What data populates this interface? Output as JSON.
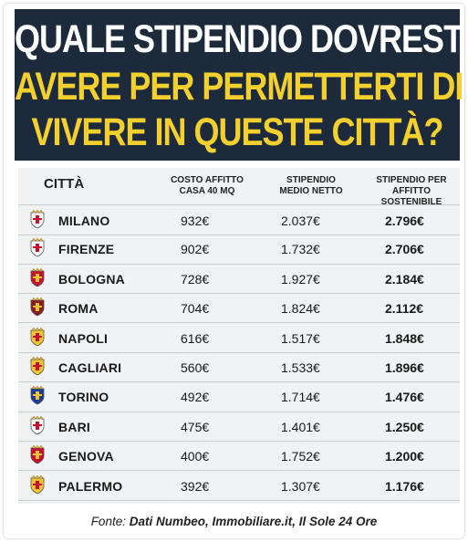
{
  "header": {
    "line1": "QUALE STIPENDIO DOVRESTI",
    "line2": "AVERE PER PERMETTERTI DI",
    "line3": "VIVERE IN QUESTE CITTÀ?"
  },
  "colors": {
    "navy": "#1c2a3b",
    "yellow": "#f4d02f"
  },
  "table": {
    "columns": {
      "city": "CITTÀ",
      "rent_l1": "COSTO AFFITTO",
      "rent_l2": "CASA 40 MQ",
      "net_l1": "STIPENDIO",
      "net_l2": "MEDIO NETTO",
      "sust_l1": "STIPENDIO PER",
      "sust_l2": "AFFITTO SOSTENIBILE"
    },
    "rows": [
      {
        "city": "MILANO",
        "rent": "932€",
        "net": "2.037€",
        "sustainable": "2.796€",
        "crest_icon": "milano-crest-icon"
      },
      {
        "city": "FIRENZE",
        "rent": "902€",
        "net": "1.732€",
        "sustainable": "2.706€",
        "crest_icon": "firenze-crest-icon"
      },
      {
        "city": "BOLOGNA",
        "rent": "728€",
        "net": "1.927€",
        "sustainable": "2.184€",
        "crest_icon": "bologna-crest-icon"
      },
      {
        "city": "ROMA",
        "rent": "704€",
        "net": "1.824€",
        "sustainable": "2.112€",
        "crest_icon": "roma-crest-icon"
      },
      {
        "city": "NAPOLI",
        "rent": "616€",
        "net": "1.517€",
        "sustainable": "1.848€",
        "crest_icon": "napoli-crest-icon"
      },
      {
        "city": "CAGLIARI",
        "rent": "560€",
        "net": "1.533€",
        "sustainable": "1.896€",
        "crest_icon": "cagliari-crest-icon"
      },
      {
        "city": "TORINO",
        "rent": "492€",
        "net": "1.714€",
        "sustainable": "1.476€",
        "crest_icon": "torino-crest-icon"
      },
      {
        "city": "BARI",
        "rent": "475€",
        "net": "1.401€",
        "sustainable": "1.250€",
        "crest_icon": "bari-crest-icon"
      },
      {
        "city": "GENOVA",
        "rent": "400€",
        "net": "1.752€",
        "sustainable": "1.200€",
        "crest_icon": "genova-crest-icon"
      },
      {
        "city": "PALERMO",
        "rent": "392€",
        "net": "1.307€",
        "sustainable": "1.176€",
        "crest_icon": "palermo-crest-icon"
      }
    ]
  },
  "source": {
    "prefix": "Fonte: ",
    "text": "Dati Numbeo, Immobiliare.it, Il Sole 24 Ore"
  }
}
